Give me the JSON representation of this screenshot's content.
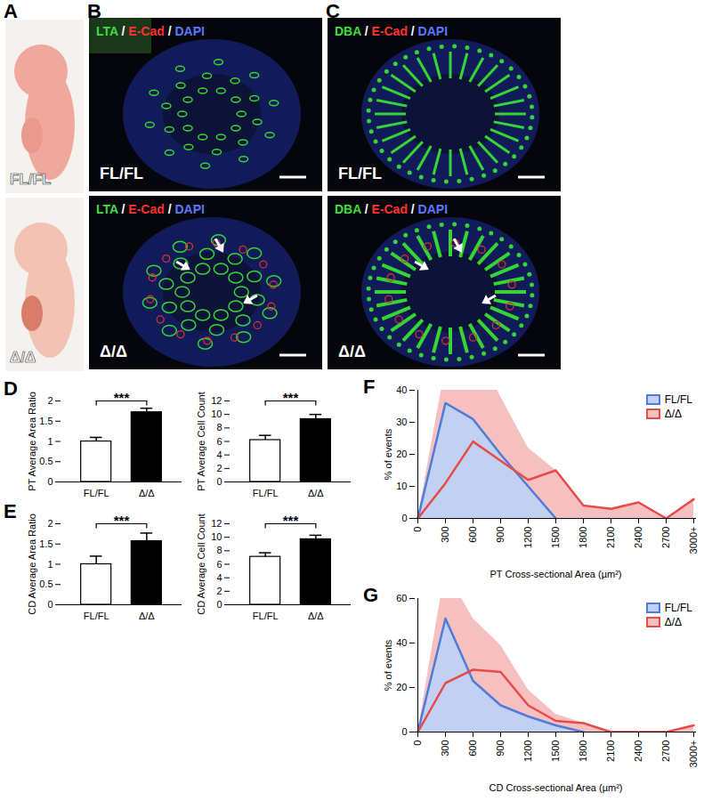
{
  "figure": {
    "panels": [
      {
        "panel": "A",
        "labels": [
          "FL/FL",
          "Δ/Δ"
        ]
      },
      {
        "panel": "B",
        "stain": "LTA / E-Cad / DAPI",
        "labels": [
          "FL/FL",
          "Δ/Δ"
        ]
      },
      {
        "panel": "C",
        "stain": "DBA / E-Cad / DAPI",
        "labels": [
          "FL/FL",
          "Δ/Δ"
        ]
      }
    ]
  },
  "chart_data": [
    {
      "panel": "D",
      "type": "bar",
      "y_label": "PT Average Area Ratio",
      "categories": [
        "FL/FL",
        "Δ/Δ"
      ],
      "values": [
        1,
        1.72
      ],
      "errors": [
        0.1,
        0.1
      ],
      "colors": [
        "#ffffff",
        "#000000"
      ],
      "ylim": [
        0,
        2
      ],
      "yticks": [
        0,
        0.5,
        1,
        1.5,
        2
      ],
      "annotation": "***"
    },
    {
      "type": "bar",
      "y_label": "PT Average Cell Count",
      "categories": [
        "FL/FL",
        "Δ/Δ"
      ],
      "values": [
        6.2,
        9.3
      ],
      "errors": [
        0.7,
        0.7
      ],
      "colors": [
        "#ffffff",
        "#000000"
      ],
      "ylim": [
        0,
        12
      ],
      "yticks": [
        0,
        2,
        4,
        6,
        8,
        10,
        12
      ],
      "annotation": "***"
    },
    {
      "panel": "E",
      "type": "bar",
      "y_label": "CD Average Area Ratio",
      "categories": [
        "FL/FL",
        "Δ/Δ"
      ],
      "values": [
        1,
        1.57
      ],
      "errors": [
        0.2,
        0.2
      ],
      "colors": [
        "#ffffff",
        "#000000"
      ],
      "ylim": [
        0,
        2
      ],
      "yticks": [
        0,
        0.5,
        1,
        1.5,
        2
      ],
      "annotation": "***"
    },
    {
      "type": "bar",
      "y_label": "CD Average Cell Count",
      "categories": [
        "FL/FL",
        "Δ/Δ"
      ],
      "values": [
        7.1,
        9.7
      ],
      "errors": [
        0.6,
        0.6
      ],
      "colors": [
        "#ffffff",
        "#000000"
      ],
      "ylim": [
        0,
        12
      ],
      "yticks": [
        0,
        2,
        4,
        6,
        8,
        10,
        12
      ],
      "annotation": "***"
    },
    {
      "panel": "F",
      "type": "area",
      "x_label": "PT Cross-sectional Area (µm²)",
      "y_label": "% of events",
      "categories": [
        "0",
        "300",
        "600",
        "900",
        "1200",
        "1500",
        "1800",
        "2100",
        "2400",
        "2700",
        "3000+"
      ],
      "series": [
        {
          "name": "FL/FL",
          "color": "#4f7bd9",
          "values": [
            0,
            36,
            31,
            20,
            10,
            0,
            null,
            null,
            null,
            null,
            null
          ]
        },
        {
          "name": "Δ/Δ",
          "color": "#e84a4a",
          "values": [
            0,
            11,
            24,
            18,
            12,
            15,
            4,
            3,
            5,
            0,
            6
          ]
        }
      ],
      "ylim": [
        0,
        40
      ],
      "yticks": [
        0,
        10,
        20,
        30,
        40
      ],
      "legend": "top-right"
    },
    {
      "panel": "G",
      "type": "area",
      "x_label": "CD Cross-sectional Area (µm²)",
      "y_label": "% of events",
      "categories": [
        "0",
        "300",
        "600",
        "900",
        "1200",
        "1500",
        "1800",
        "2100",
        "2400",
        "2700",
        "3000+"
      ],
      "series": [
        {
          "name": "FL/FL",
          "color": "#4f7bd9",
          "values": [
            0,
            51,
            23,
            12,
            7,
            3,
            0,
            null,
            null,
            null,
            null
          ]
        },
        {
          "name": "Δ/Δ",
          "color": "#e84a4a",
          "values": [
            0,
            22,
            28,
            27,
            12,
            5,
            4,
            0,
            0,
            0,
            3
          ]
        }
      ],
      "ylim": [
        0,
        60
      ],
      "yticks": [
        0,
        20,
        40,
        60
      ],
      "legend": "top-right"
    }
  ]
}
